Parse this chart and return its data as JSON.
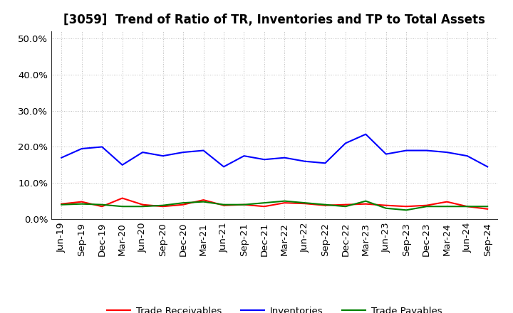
{
  "title": "[3059]  Trend of Ratio of TR, Inventories and TP to Total Assets",
  "labels": [
    "Jun-19",
    "Sep-19",
    "Dec-19",
    "Mar-20",
    "Jun-20",
    "Sep-20",
    "Dec-20",
    "Mar-21",
    "Jun-21",
    "Sep-21",
    "Dec-21",
    "Mar-22",
    "Jun-22",
    "Sep-22",
    "Dec-22",
    "Mar-23",
    "Jun-23",
    "Sep-23",
    "Dec-23",
    "Mar-24",
    "Jun-24",
    "Sep-24"
  ],
  "trade_receivables": [
    4.2,
    4.8,
    3.5,
    5.8,
    4.0,
    3.5,
    4.0,
    5.3,
    3.8,
    4.0,
    3.5,
    4.5,
    4.3,
    3.8,
    4.0,
    4.2,
    3.8,
    3.5,
    3.8,
    4.8,
    3.5,
    2.8
  ],
  "inventories": [
    17.0,
    19.5,
    20.0,
    15.0,
    18.5,
    17.5,
    18.5,
    19.0,
    14.5,
    17.5,
    16.5,
    17.0,
    16.0,
    15.5,
    21.0,
    23.5,
    18.0,
    19.0,
    19.0,
    18.5,
    17.5,
    14.5
  ],
  "trade_payables": [
    4.0,
    4.2,
    4.0,
    3.5,
    3.5,
    3.8,
    4.5,
    4.8,
    4.0,
    4.0,
    4.5,
    5.0,
    4.5,
    4.0,
    3.5,
    5.0,
    3.0,
    2.5,
    3.5,
    3.5,
    3.5,
    3.5
  ],
  "tr_color": "#ff0000",
  "inv_color": "#0000ff",
  "tp_color": "#008000",
  "background_color": "#ffffff",
  "grid_color": "#aaaaaa",
  "ylim": [
    0,
    52
  ],
  "yticks": [
    0,
    10,
    20,
    30,
    40,
    50
  ],
  "ytick_labels": [
    "0.0%",
    "10.0%",
    "20.0%",
    "30.0%",
    "40.0%",
    "50.0%"
  ],
  "legend_labels": [
    "Trade Receivables",
    "Inventories",
    "Trade Payables"
  ],
  "title_fontsize": 12,
  "tick_fontsize": 9.5,
  "legend_fontsize": 9.5,
  "linewidth": 1.5
}
